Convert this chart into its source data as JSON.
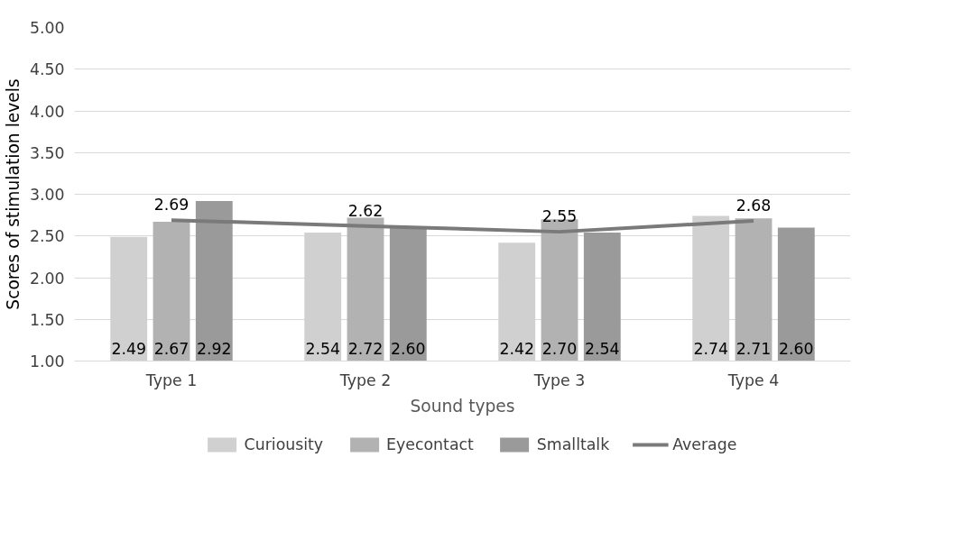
{
  "chart_data": {
    "type": "bar",
    "xlabel": "Sound types",
    "ylabel": "Scores of stimulation levels",
    "categories": [
      "Type 1",
      "Type 2",
      "Type 3",
      "Type 4"
    ],
    "series": [
      {
        "name": "Curiousity",
        "color": "#d0d0d0",
        "values": [
          2.49,
          2.54,
          2.42,
          2.74
        ],
        "value_labels": [
          "2.49",
          "2.54",
          "2.42",
          "2.74"
        ]
      },
      {
        "name": "Eyecontact",
        "color": "#b2b2b2",
        "values": [
          2.67,
          2.72,
          2.7,
          2.71
        ],
        "value_labels": [
          "2.67",
          "2.72",
          "2.70",
          "2.71"
        ]
      },
      {
        "name": "Smalltalk",
        "color": "#9a9a9a",
        "values": [
          2.92,
          2.6,
          2.54,
          2.6
        ],
        "value_labels": [
          "2.92",
          "2.60",
          "2.54",
          "2.60"
        ]
      },
      {
        "name": "Average",
        "type": "line",
        "color": "#7a7a7a",
        "values": [
          2.69,
          2.62,
          2.55,
          2.68
        ],
        "value_labels": [
          "2.69",
          "2.62",
          "2.55",
          "2.68"
        ]
      }
    ],
    "ylim": [
      1.0,
      5.0
    ],
    "yticks": [
      {
        "value": 1.0,
        "label": "1.00"
      },
      {
        "value": 1.5,
        "label": "1.50"
      },
      {
        "value": 2.0,
        "label": "2.00"
      },
      {
        "value": 2.5,
        "label": "2.50"
      },
      {
        "value": 3.0,
        "label": "3.00"
      },
      {
        "value": 3.5,
        "label": "3.50"
      },
      {
        "value": 4.0,
        "label": "4.00"
      },
      {
        "value": 4.5,
        "label": "4.50"
      },
      {
        "value": 5.0,
        "label": "5.00"
      }
    ],
    "grid": "y",
    "legend": "bottom",
    "line_style": "solid"
  }
}
